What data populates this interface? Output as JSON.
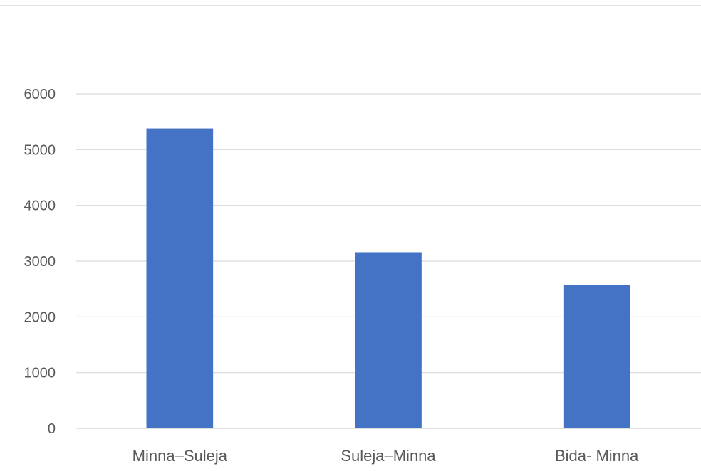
{
  "chart_data": {
    "type": "bar",
    "categories": [
      "Minna–Suleja",
      "Suleja–Minna",
      "Bida- Minna"
    ],
    "values": [
      5380,
      3160,
      2570
    ],
    "ylim": [
      0,
      6000
    ],
    "yticks": [
      0,
      1000,
      2000,
      3000,
      4000,
      5000,
      6000
    ],
    "grid": true,
    "legend": "none",
    "colors": {
      "bar": "#4472C4",
      "grid": "#D9D9D9",
      "axis": "#D9D9D9",
      "text": "#595959"
    }
  }
}
